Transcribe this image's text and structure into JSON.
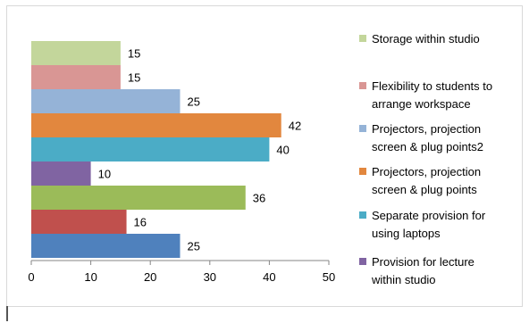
{
  "chart_data": {
    "type": "bar",
    "orientation": "horizontal",
    "categories": [
      "Provision for lecture within studio",
      "Separate provision for using laptops",
      "Projectors, projection screen & plug points",
      "Projectors, projection screen & plug points2",
      "Flexibility to students to arrange workspace",
      "Storage within studio",
      "",
      "",
      ""
    ],
    "bars": [
      {
        "value": 15,
        "color": "#c3d69b"
      },
      {
        "value": 15,
        "color": "#d99694"
      },
      {
        "value": 25,
        "color": "#95b3d7"
      },
      {
        "value": 42,
        "color": "#e2873e"
      },
      {
        "value": 40,
        "color": "#4bacc6"
      },
      {
        "value": 10,
        "color": "#8064a2"
      },
      {
        "value": 36,
        "color": "#9bbb59"
      },
      {
        "value": 16,
        "color": "#c0504d"
      },
      {
        "value": 25,
        "color": "#4f81bd"
      }
    ],
    "xlim": [
      0,
      50
    ],
    "xticks": [
      "0",
      "10",
      "20",
      "30",
      "40",
      "50"
    ],
    "legend": [
      {
        "lines": [
          "Storage within studio"
        ],
        "color": "#c3d69b"
      },
      {
        "lines": [
          "Flexibility to students to",
          "arrange workspace"
        ],
        "color": "#d99694"
      },
      {
        "lines": [
          "Projectors, projection",
          "screen & plug points2"
        ],
        "color": "#95b3d7"
      },
      {
        "lines": [
          "Projectors, projection",
          "screen & plug points"
        ],
        "color": "#e2873e"
      },
      {
        "lines": [
          "Separate provision for",
          "using laptops"
        ],
        "color": "#4bacc6"
      },
      {
        "lines": [
          "Provision for lecture",
          "within studio"
        ],
        "color": "#8064a2"
      }
    ],
    "legend_position": "right",
    "grid": false
  }
}
